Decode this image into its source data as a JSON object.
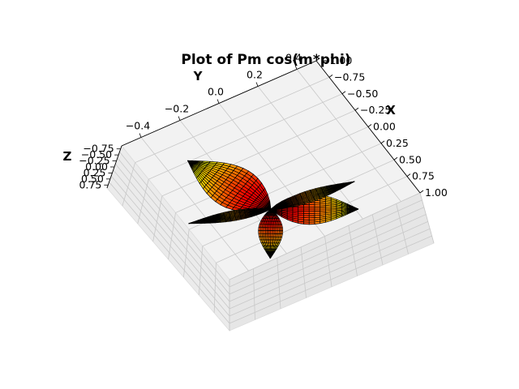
{
  "chart_data": {
    "type": "surface3d",
    "title": "Plot of Pm cos(m*phi)",
    "xlabel": "X",
    "ylabel": "Y",
    "zlabel": "Z",
    "x_ticks": [
      "−1.00",
      "−0.75",
      "−0.50",
      "−0.25",
      "0.00",
      "0.25",
      "0.50",
      "0.75",
      "1.00"
    ],
    "y_ticks": [
      "−0.4",
      "−0.2",
      "0.0",
      "0.2",
      "0.4"
    ],
    "z_ticks": [
      "−0.75",
      "−0.50",
      "−0.25",
      "0.00",
      "0.25",
      "0.50",
      "0.75"
    ],
    "xlim": [
      -1.0,
      1.0
    ],
    "ylim": [
      -0.5,
      0.5
    ],
    "zlim": [
      -0.85,
      0.85
    ],
    "lobes": 4,
    "colormap": "hot",
    "grid": true,
    "colors": {
      "pane": "#f2f2f2",
      "grid": "#c8c8c8",
      "edge": "#000000"
    }
  }
}
